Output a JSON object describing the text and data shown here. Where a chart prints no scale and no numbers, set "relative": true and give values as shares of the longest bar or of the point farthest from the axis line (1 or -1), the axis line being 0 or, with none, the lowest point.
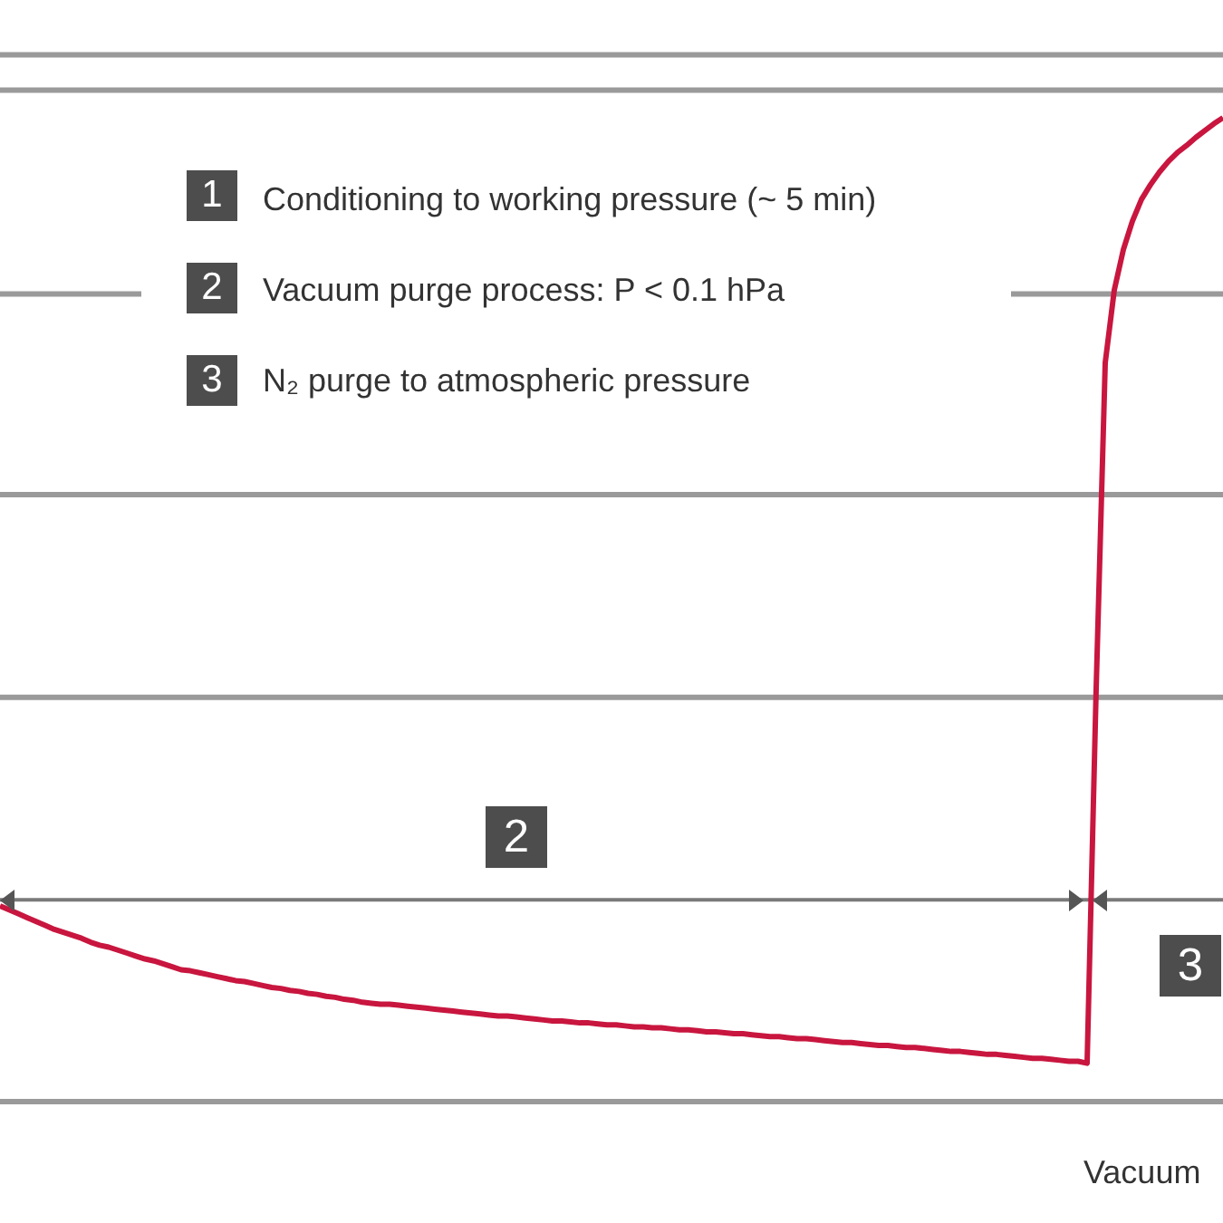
{
  "chart_data": {
    "type": "line",
    "relative": true,
    "marker": "none",
    "ref_lines": [
      {
        "axis": "y",
        "value": 0,
        "color": "#9a9a9a"
      },
      {
        "axis": "y",
        "value": 0.205,
        "color": "#7a7a7a"
      },
      {
        "axis": "y",
        "value": 0.411,
        "color": "#9a9a9a"
      },
      {
        "axis": "y",
        "value": 0.617,
        "color": "#9a9a9a"
      },
      {
        "axis": "y",
        "value": 0.821,
        "color": "#9a9a9a"
      },
      {
        "axis": "y",
        "value": 1.028,
        "color": "#9a9a9a"
      },
      {
        "axis": "y",
        "value": 1.064,
        "color": "#9a9a9a"
      }
    ],
    "categories": [
      null,
      null,
      null,
      null,
      null,
      null,
      null,
      null,
      null,
      null,
      null,
      null,
      null,
      null,
      null,
      null,
      null,
      null,
      null,
      null,
      null,
      null,
      null,
      null,
      null,
      null,
      null,
      null,
      null,
      null,
      null,
      null,
      null,
      null,
      null,
      null,
      null,
      null,
      null,
      null,
      null,
      null,
      null,
      null,
      null,
      null,
      null,
      null,
      null,
      null,
      null,
      null,
      null,
      null,
      null,
      null,
      null,
      null,
      null,
      null,
      null,
      null,
      null,
      null,
      null,
      null,
      null,
      null,
      null,
      null,
      null,
      null,
      null,
      null,
      null,
      null,
      null,
      null,
      null,
      null,
      null,
      null,
      null,
      null,
      null,
      null,
      null,
      null,
      null,
      null,
      null,
      null,
      null,
      null,
      null,
      null,
      null,
      null,
      null,
      null,
      null,
      null,
      null,
      null,
      null,
      null,
      null,
      null,
      null,
      null,
      null,
      null,
      null,
      null,
      null,
      null,
      null,
      null,
      null,
      null,
      null,
      null,
      null,
      null,
      null,
      null,
      null,
      null,
      null,
      null,
      null,
      null,
      null,
      null,
      null,
      null
    ],
    "series": [
      {
        "color": "#c8163f",
        "values": [
          0.199,
          0.195,
          0.191,
          0.187,
          0.183,
          0.179,
          0.175,
          0.172,
          0.169,
          0.166,
          0.162,
          0.159,
          0.157,
          0.154,
          0.151,
          0.148,
          0.145,
          0.143,
          0.14,
          0.137,
          0.134,
          0.133,
          0.131,
          0.129,
          0.127,
          0.125,
          0.123,
          0.122,
          0.12,
          0.118,
          0.116,
          0.115,
          0.113,
          0.112,
          0.11,
          0.109,
          0.107,
          0.106,
          0.104,
          0.103,
          0.101,
          0.1,
          0.099,
          0.099,
          0.098,
          0.097,
          0.096,
          0.095,
          0.094,
          0.093,
          0.092,
          0.091,
          0.09,
          0.089,
          0.088,
          0.087,
          0.087,
          0.086,
          0.085,
          0.084,
          0.083,
          0.082,
          0.082,
          0.081,
          0.08,
          0.08,
          0.079,
          0.078,
          0.078,
          0.077,
          0.076,
          0.076,
          0.075,
          0.075,
          0.074,
          0.073,
          0.073,
          0.072,
          0.071,
          0.071,
          0.07,
          0.069,
          0.069,
          0.068,
          0.067,
          0.066,
          0.066,
          0.065,
          0.064,
          0.064,
          0.063,
          0.062,
          0.061,
          0.06,
          0.06,
          0.059,
          0.058,
          0.057,
          0.057,
          0.056,
          0.055,
          0.055,
          0.054,
          0.053,
          0.052,
          0.051,
          0.051,
          0.05,
          0.049,
          0.048,
          0.048,
          0.047,
          0.046,
          0.045,
          0.044,
          0.044,
          0.043,
          0.042,
          0.041,
          0.041,
          0.039,
          0.42,
          0.751,
          0.825,
          0.866,
          0.895,
          0.917,
          0.932,
          0.945,
          0.956,
          0.965,
          0.972,
          0.98,
          0.987,
          0.994,
          1
        ]
      }
    ],
    "annotations": [
      "1",
      "Conditioning to working pressure (~ 5 min)",
      "2",
      "Vacuum purge process: P < 0.1 hPa",
      "3",
      "N₂ purge to atmospheric pressure",
      "2",
      "3",
      "Vacuum"
    ]
  }
}
